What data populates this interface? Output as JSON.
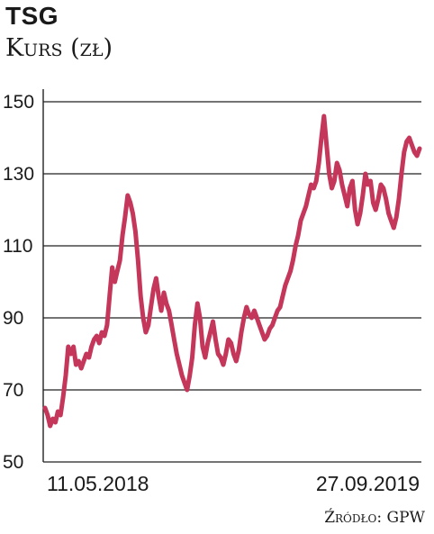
{
  "title": "TSG",
  "subtitle": "Kurs (zł)",
  "source": "Źródło: GPW",
  "colors": {
    "line": "#c4365a",
    "grid": "#222222",
    "text": "#1a1a1a"
  },
  "chart_data": {
    "type": "line",
    "title": "TSG",
    "ylabel": "Kurs (zł)",
    "ylim": [
      50,
      150
    ],
    "yticks": [
      50,
      70,
      90,
      110,
      130,
      150
    ],
    "grid": true,
    "x_labels": [
      "11.05.2018",
      "27.09.2019"
    ],
    "series": [
      {
        "values": [
          65,
          63,
          60,
          62,
          61,
          64,
          63,
          68,
          74,
          82,
          80,
          82,
          77,
          78,
          76,
          78,
          80,
          79,
          82,
          84,
          85,
          83,
          86,
          85,
          88,
          96,
          104,
          100,
          103,
          106,
          113,
          118,
          124,
          122,
          119,
          114,
          106,
          96,
          90,
          86,
          88,
          93,
          98,
          101,
          96,
          92,
          97,
          94,
          92,
          88,
          84,
          80,
          77,
          74,
          72,
          70,
          74,
          79,
          88,
          94,
          90,
          82,
          79,
          83,
          86,
          89,
          84,
          80,
          79,
          77,
          80,
          84,
          83,
          80,
          78,
          81,
          86,
          90,
          93,
          91,
          90,
          92,
          90,
          88,
          86,
          84,
          85,
          87,
          88,
          90,
          92,
          93,
          96,
          99,
          101,
          103,
          106,
          110,
          113,
          117,
          119,
          121,
          124,
          127,
          126,
          128,
          133,
          140,
          146,
          138,
          130,
          126,
          128,
          133,
          131,
          127,
          124,
          121,
          126,
          128,
          120,
          116,
          119,
          124,
          130,
          127,
          128,
          122,
          120,
          123,
          127,
          126,
          123,
          119,
          117,
          115,
          118,
          123,
          130,
          136,
          139,
          140,
          138,
          136,
          135,
          137
        ]
      }
    ]
  }
}
